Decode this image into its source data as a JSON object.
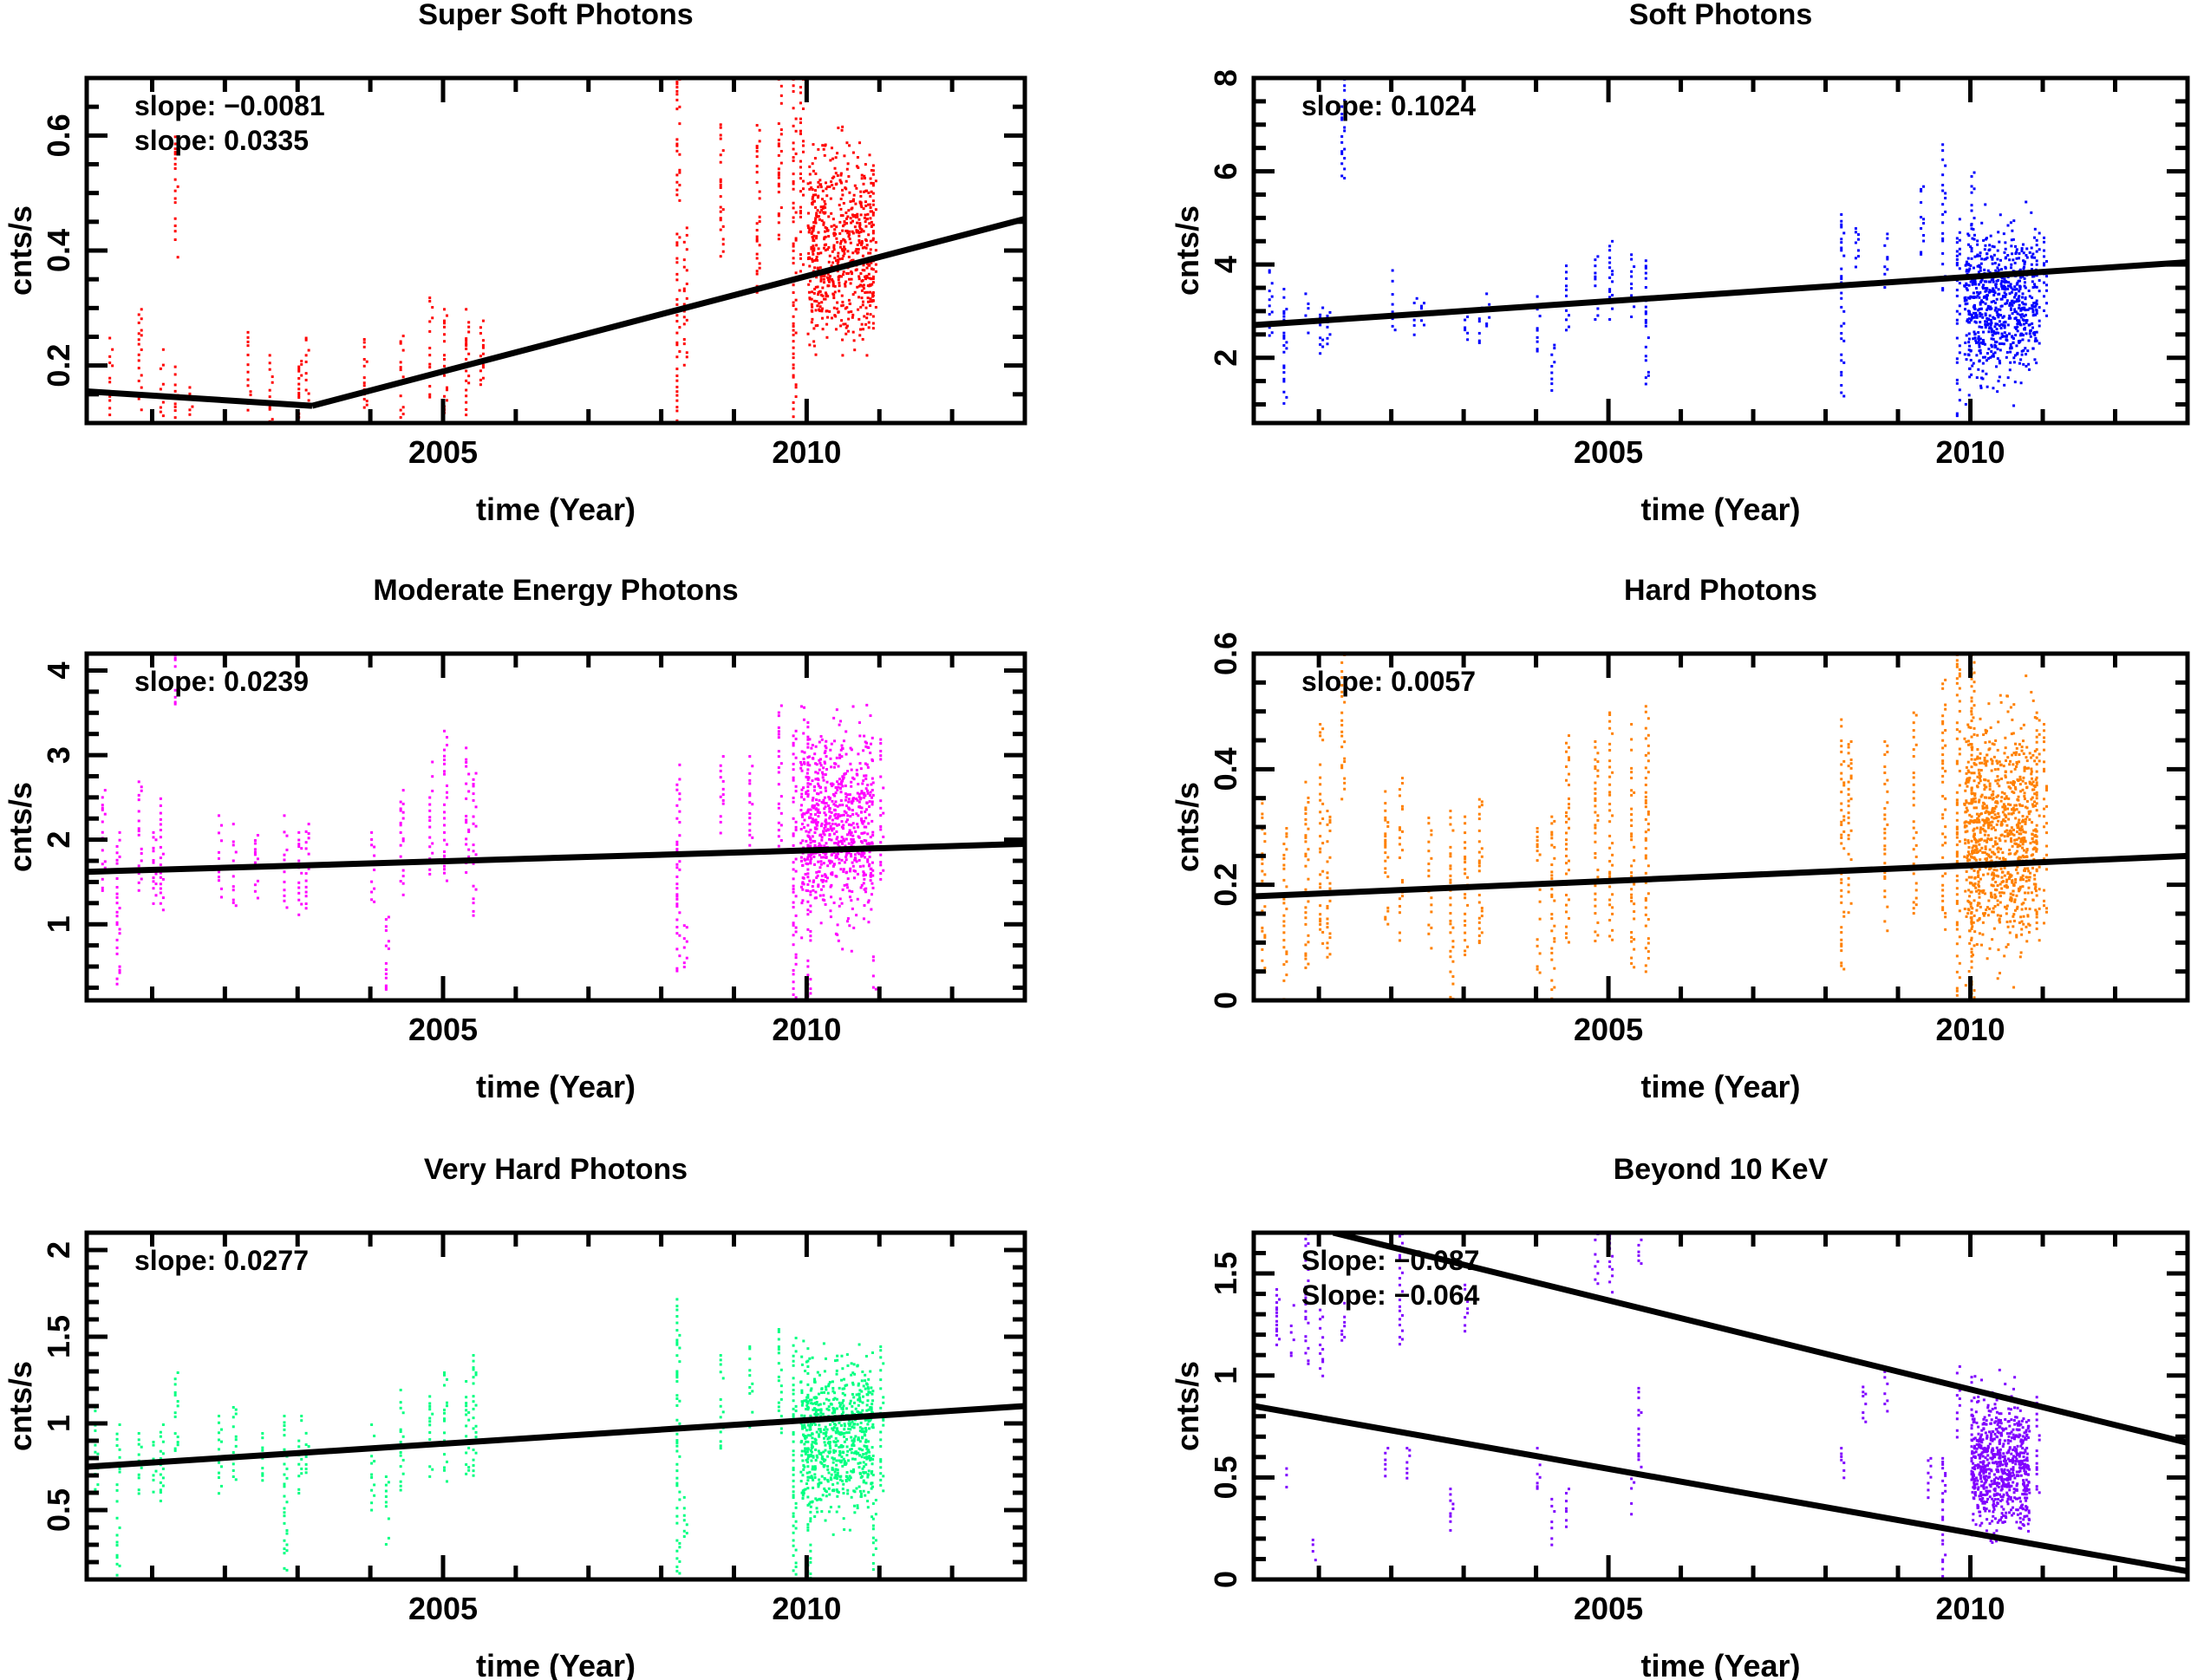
{
  "chart_data": [
    {
      "type": "scatter",
      "title": "Super Soft Photons",
      "xlabel": "time (Year)",
      "ylabel": "cnts/s",
      "xlim": [
        2000.1,
        2013.0
      ],
      "ylim": [
        0.1,
        0.7
      ],
      "xticks": [
        2005,
        2010
      ],
      "yticks": [
        0.2,
        0.4,
        0.6
      ],
      "color": "#ff0000",
      "annotations": [
        "slope: −0.0081",
        "slope: 0.0335"
      ],
      "fit_lines": [
        {
          "x": [
            2000.1,
            2003.2
          ],
          "y": [
            0.155,
            0.13
          ]
        },
        {
          "x": [
            2003.2,
            2013.0
          ],
          "y": [
            0.13,
            0.455
          ]
        }
      ],
      "segments": [
        [
          2000.4,
          0.11,
          0.25
        ],
        [
          2000.8,
          0.12,
          0.3
        ],
        [
          2001.1,
          0.11,
          0.23
        ],
        [
          2001.3,
          0.1,
          0.2
        ],
        [
          2001.3,
          0.38,
          0.6
        ],
        [
          2001.5,
          0.1,
          0.17
        ],
        [
          2002.3,
          0.12,
          0.26
        ],
        [
          2002.6,
          0.1,
          0.22
        ],
        [
          2003.0,
          0.1,
          0.21
        ],
        [
          2003.1,
          0.13,
          0.25
        ],
        [
          2003.9,
          0.1,
          0.26
        ],
        [
          2004.4,
          0.11,
          0.26
        ],
        [
          2004.8,
          0.14,
          0.32
        ],
        [
          2005.0,
          0.12,
          0.3
        ],
        [
          2005.3,
          0.1,
          0.33
        ],
        [
          2005.5,
          0.15,
          0.28
        ],
        [
          2008.2,
          0.1,
          0.7
        ],
        [
          2008.3,
          0.2,
          0.45
        ],
        [
          2008.8,
          0.39,
          0.63
        ],
        [
          2009.3,
          0.32,
          0.62
        ],
        [
          2009.6,
          0.42,
          0.7
        ],
        [
          2009.8,
          0.1,
          0.7
        ],
        [
          2009.9,
          0.35,
          0.7
        ],
        [
          2010.9,
          0.25,
          0.55
        ]
      ],
      "clusters": [
        {
          "x": [
            2010.0,
            2010.9
          ],
          "y": [
            0.15,
            0.65
          ],
          "n": 600
        }
      ]
    },
    {
      "type": "scatter",
      "title": "Soft Photons",
      "xlabel": "time (Year)",
      "ylabel": "cnts/s",
      "xlim": [
        2000.1,
        2013.0
      ],
      "ylim": [
        0.6,
        8
      ],
      "xticks": [
        2005,
        2010
      ],
      "yticks": [
        2,
        4,
        6,
        8
      ],
      "color": "#0000ff",
      "annotations": [
        "slope: 0.1024"
      ],
      "fit_lines": [
        {
          "x": [
            2000.1,
            2013.0
          ],
          "y": [
            2.7,
            4.05
          ]
        }
      ],
      "segments": [
        [
          2000.3,
          2.5,
          3.9
        ],
        [
          2000.5,
          1.0,
          3.5
        ],
        [
          2000.8,
          2.3,
          3.4
        ],
        [
          2001.0,
          2.1,
          3.1
        ],
        [
          2001.1,
          2.2,
          3.0
        ],
        [
          2001.3,
          5.8,
          8.0
        ],
        [
          2002.0,
          2.6,
          3.9
        ],
        [
          2002.3,
          2.5,
          3.3
        ],
        [
          2002.4,
          2.7,
          3.2
        ],
        [
          2003.0,
          2.4,
          3.4
        ],
        [
          2003.2,
          2.3,
          3.2
        ],
        [
          2003.3,
          2.6,
          3.4
        ],
        [
          2004.0,
          2.1,
          3.4
        ],
        [
          2004.2,
          1.3,
          2.3
        ],
        [
          2004.4,
          2.5,
          4.0
        ],
        [
          2004.8,
          2.8,
          4.2
        ],
        [
          2005.0,
          2.8,
          4.6
        ],
        [
          2005.3,
          2.9,
          4.3
        ],
        [
          2005.5,
          1.4,
          4.3
        ],
        [
          2008.2,
          1.0,
          5.1
        ],
        [
          2008.4,
          3.9,
          4.8
        ],
        [
          2008.8,
          3.5,
          4.8
        ],
        [
          2009.3,
          4.2,
          5.7
        ],
        [
          2009.6,
          3.3,
          6.6
        ],
        [
          2009.8,
          0.6,
          5.0
        ],
        [
          2010.0,
          4.0,
          6.0
        ],
        [
          2010.9,
          2.3,
          4.7
        ],
        [
          2011.0,
          2.9,
          4.6
        ]
      ],
      "clusters": [
        {
          "x": [
            2009.9,
            2010.9
          ],
          "y": [
            0.8,
            5.5
          ],
          "n": 700
        }
      ]
    },
    {
      "type": "scatter",
      "title": "Moderate Energy Photons",
      "xlabel": "time (Year)",
      "ylabel": "cnts/s",
      "xlim": [
        2000.1,
        2013.0
      ],
      "ylim": [
        0.1,
        4.2
      ],
      "xticks": [
        2005,
        2010
      ],
      "yticks": [
        1,
        2,
        3,
        4
      ],
      "color": "#ff00ff",
      "annotations": [
        "slope: 0.0239"
      ],
      "fit_lines": [
        {
          "x": [
            2000.1,
            2013.0
          ],
          "y": [
            1.62,
            1.95
          ]
        }
      ],
      "segments": [
        [
          2000.3,
          1.4,
          2.6
        ],
        [
          2000.5,
          0.3,
          2.1
        ],
        [
          2000.8,
          1.3,
          2.7
        ],
        [
          2001.0,
          1.2,
          2.1
        ],
        [
          2001.1,
          1.1,
          2.5
        ],
        [
          2001.3,
          3.6,
          4.2
        ],
        [
          2001.9,
          1.3,
          2.3
        ],
        [
          2002.1,
          1.2,
          2.2
        ],
        [
          2002.4,
          1.3,
          2.1
        ],
        [
          2002.8,
          1.2,
          2.3
        ],
        [
          2003.0,
          1.1,
          2.1
        ],
        [
          2003.1,
          1.2,
          2.2
        ],
        [
          2004.0,
          1.2,
          2.1
        ],
        [
          2004.2,
          0.1,
          1.1
        ],
        [
          2004.4,
          1.3,
          2.6
        ],
        [
          2004.8,
          1.6,
          3.0
        ],
        [
          2005.0,
          1.4,
          3.3
        ],
        [
          2005.3,
          1.5,
          3.1
        ],
        [
          2005.4,
          1.0,
          2.8
        ],
        [
          2008.2,
          0.4,
          2.9
        ],
        [
          2008.3,
          0.5,
          1.0
        ],
        [
          2008.8,
          1.9,
          3.0
        ],
        [
          2009.2,
          1.8,
          3.0
        ],
        [
          2009.6,
          1.9,
          3.6
        ],
        [
          2009.8,
          0.1,
          3.3
        ],
        [
          2010.0,
          0.1,
          3.4
        ],
        [
          2010.9,
          0.2,
          0.7
        ],
        [
          2011.0,
          1.5,
          3.2
        ]
      ],
      "clusters": [
        {
          "x": [
            2009.9,
            2010.9
          ],
          "y": [
            0.6,
            3.8
          ],
          "n": 700
        }
      ]
    },
    {
      "type": "scatter",
      "title": "Hard Photons",
      "xlabel": "time (Year)",
      "ylabel": "cnts/s",
      "xlim": [
        2000.1,
        2013.0
      ],
      "ylim": [
        0,
        0.6
      ],
      "xticks": [
        2005,
        2010
      ],
      "yticks": [
        0,
        0.2,
        0.4,
        0.6
      ],
      "color": "#ff8000",
      "annotations": [
        "slope: 0.0057"
      ],
      "fit_lines": [
        {
          "x": [
            2000.1,
            2013.0
          ],
          "y": [
            0.18,
            0.25
          ]
        }
      ],
      "segments": [
        [
          2000.2,
          0.05,
          0.35
        ],
        [
          2000.5,
          0.0,
          0.3
        ],
        [
          2000.8,
          0.05,
          0.38
        ],
        [
          2001.0,
          0.1,
          0.48
        ],
        [
          2001.1,
          0.06,
          0.33
        ],
        [
          2001.3,
          0.35,
          0.6
        ],
        [
          2001.9,
          0.12,
          0.37
        ],
        [
          2002.1,
          0.1,
          0.4
        ],
        [
          2002.5,
          0.08,
          0.33
        ],
        [
          2002.8,
          0.0,
          0.33
        ],
        [
          2003.0,
          0.08,
          0.32
        ],
        [
          2003.2,
          0.1,
          0.35
        ],
        [
          2004.0,
          0.05,
          0.3
        ],
        [
          2004.2,
          0.0,
          0.32
        ],
        [
          2004.4,
          0.1,
          0.47
        ],
        [
          2004.8,
          0.1,
          0.45
        ],
        [
          2005.0,
          0.1,
          0.5
        ],
        [
          2005.3,
          0.05,
          0.48
        ],
        [
          2005.5,
          0.05,
          0.52
        ],
        [
          2008.2,
          0.05,
          0.5
        ],
        [
          2008.3,
          0.15,
          0.45
        ],
        [
          2008.8,
          0.12,
          0.45
        ],
        [
          2009.2,
          0.15,
          0.5
        ],
        [
          2009.6,
          0.12,
          0.56
        ],
        [
          2009.8,
          0.0,
          0.6
        ],
        [
          2010.0,
          0.0,
          0.6
        ],
        [
          2010.9,
          0.1,
          0.5
        ],
        [
          2011.0,
          0.13,
          0.48
        ]
      ],
      "clusters": [
        {
          "x": [
            2009.9,
            2010.9
          ],
          "y": [
            0.0,
            0.58
          ],
          "n": 900
        }
      ]
    },
    {
      "type": "scatter",
      "title": "Very Hard  Photons",
      "xlabel": "time (Year)",
      "ylabel": "cnts/s",
      "xlim": [
        2000.1,
        2013.0
      ],
      "ylim": [
        0.1,
        2.1
      ],
      "xticks": [
        2005,
        2010
      ],
      "yticks": [
        0.5,
        1,
        1.5,
        2
      ],
      "color": "#00ff80",
      "annotations": [
        "slope: 0.0277"
      ],
      "fit_lines": [
        {
          "x": [
            2000.1,
            2013.0
          ],
          "y": [
            0.75,
            1.1
          ]
        }
      ],
      "segments": [
        [
          2000.2,
          0.6,
          1.1
        ],
        [
          2000.5,
          0.1,
          1.0
        ],
        [
          2000.8,
          0.6,
          0.95
        ],
        [
          2001.0,
          0.55,
          0.9
        ],
        [
          2001.1,
          0.55,
          1.0
        ],
        [
          2001.3,
          0.8,
          1.3
        ],
        [
          2001.9,
          0.6,
          1.05
        ],
        [
          2002.1,
          0.65,
          1.1
        ],
        [
          2002.5,
          0.65,
          0.95
        ],
        [
          2002.8,
          0.15,
          1.05
        ],
        [
          2003.0,
          0.6,
          1.05
        ],
        [
          2003.1,
          0.65,
          1.0
        ],
        [
          2004.0,
          0.5,
          1.0
        ],
        [
          2004.2,
          0.3,
          0.7
        ],
        [
          2004.4,
          0.6,
          1.2
        ],
        [
          2004.8,
          0.7,
          1.2
        ],
        [
          2005.0,
          0.6,
          1.3
        ],
        [
          2005.3,
          0.7,
          1.25
        ],
        [
          2005.4,
          0.65,
          1.4
        ],
        [
          2008.2,
          0.1,
          1.75
        ],
        [
          2008.3,
          0.35,
          0.6
        ],
        [
          2008.8,
          0.85,
          1.4
        ],
        [
          2009.2,
          0.95,
          1.45
        ],
        [
          2009.6,
          0.95,
          1.55
        ],
        [
          2009.8,
          0.1,
          1.5
        ],
        [
          2010.0,
          0.1,
          1.45
        ],
        [
          2010.9,
          0.15,
          0.6
        ],
        [
          2011.0,
          0.6,
          1.45
        ]
      ],
      "clusters": [
        {
          "x": [
            2009.9,
            2010.9
          ],
          "y": [
            0.3,
            1.55
          ],
          "n": 700
        }
      ]
    },
    {
      "type": "scatter",
      "title": "Beyond 10 KeV",
      "xlabel": "time (Year)",
      "ylabel": "cnts/s",
      "xlim": [
        2000.1,
        2013.0
      ],
      "ylim": [
        0,
        1.7
      ],
      "xticks": [
        2005,
        2010
      ],
      "yticks": [
        0,
        0.5,
        1,
        1.5
      ],
      "color": "#8000ff",
      "annotations": [
        "Slope: −0.087",
        "Slope: −0.064"
      ],
      "fit_lines": [
        {
          "x": [
            2001.2,
            2013.0
          ],
          "y": [
            1.7,
            0.67
          ]
        },
        {
          "x": [
            2000.1,
            2013.0
          ],
          "y": [
            0.85,
            0.04
          ]
        }
      ],
      "segments": [
        [
          2000.4,
          1.05,
          1.45
        ],
        [
          2000.5,
          0.4,
          0.55
        ],
        [
          2000.6,
          1.1,
          1.35
        ],
        [
          2000.8,
          1.05,
          1.7
        ],
        [
          2000.9,
          0.1,
          0.2
        ],
        [
          2001.0,
          1.0,
          1.35
        ],
        [
          2001.3,
          1.15,
          1.4
        ],
        [
          2001.9,
          0.5,
          0.65
        ],
        [
          2002.1,
          1.15,
          1.7
        ],
        [
          2002.2,
          0.5,
          0.65
        ],
        [
          2002.8,
          0.2,
          0.45
        ],
        [
          2003.0,
          1.2,
          1.45
        ],
        [
          2004.0,
          0.45,
          0.65
        ],
        [
          2004.2,
          0.15,
          0.4
        ],
        [
          2004.4,
          0.25,
          0.45
        ],
        [
          2004.8,
          1.45,
          1.7
        ],
        [
          2005.0,
          1.4,
          1.7
        ],
        [
          2005.3,
          0.3,
          0.5
        ],
        [
          2005.4,
          0.55,
          1.0
        ],
        [
          2005.4,
          1.55,
          1.7
        ],
        [
          2008.2,
          0.45,
          0.65
        ],
        [
          2008.5,
          0.75,
          0.95
        ],
        [
          2008.8,
          0.8,
          1.05
        ],
        [
          2009.4,
          0.4,
          0.6
        ],
        [
          2009.6,
          0.0,
          0.6
        ],
        [
          2009.8,
          0.7,
          1.05
        ],
        [
          2010.0,
          0.35,
          1.05
        ],
        [
          2010.9,
          0.4,
          0.9
        ]
      ],
      "clusters": [
        {
          "x": [
            2010.0,
            2010.8
          ],
          "y": [
            0.1,
            1.05
          ],
          "n": 700
        }
      ]
    }
  ]
}
